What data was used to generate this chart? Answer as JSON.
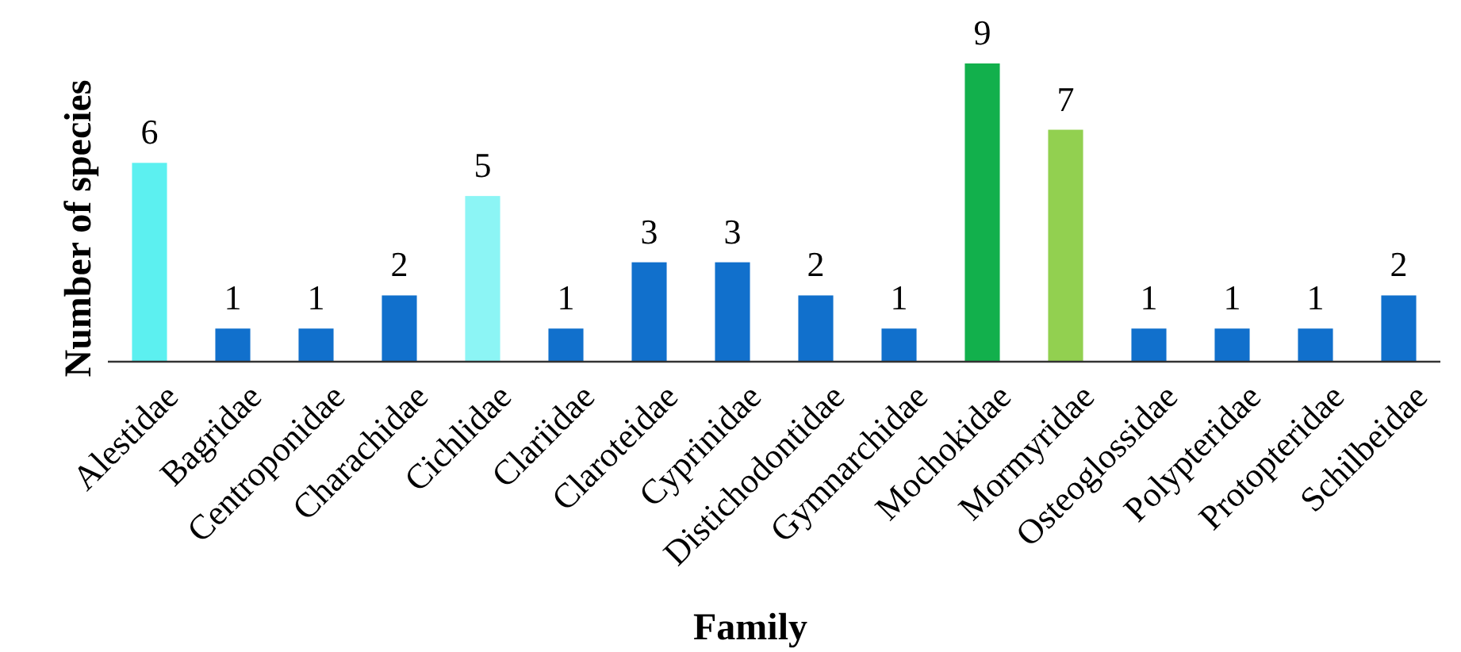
{
  "chart_data": {
    "type": "bar",
    "xlabel": "Family",
    "ylabel": "Number of species",
    "categories": [
      "Alestidae",
      "Bagridae",
      "Centroponidae",
      "Charachidae",
      "Cichlidae",
      "Clariidae",
      "Claroteidae",
      "Cyprinidae",
      "Distichodontidae",
      "Gymnarchidae",
      "Mochokidae",
      "Mormyridae",
      "Osteoglossidae",
      "Polypteridae",
      "Protopteridae",
      "Schilbeidae"
    ],
    "values": [
      6,
      1,
      1,
      2,
      5,
      1,
      3,
      3,
      2,
      1,
      9,
      7,
      1,
      1,
      1,
      2
    ],
    "colors": [
      "#5cf0f0",
      "#1170cc",
      "#1170cc",
      "#1170cc",
      "#8cf5f5",
      "#1170cc",
      "#1170cc",
      "#1170cc",
      "#1170cc",
      "#1170cc",
      "#12b04c",
      "#92d050",
      "#1170cc",
      "#1170cc",
      "#1170cc",
      "#1170cc"
    ],
    "data_labels": true
  }
}
